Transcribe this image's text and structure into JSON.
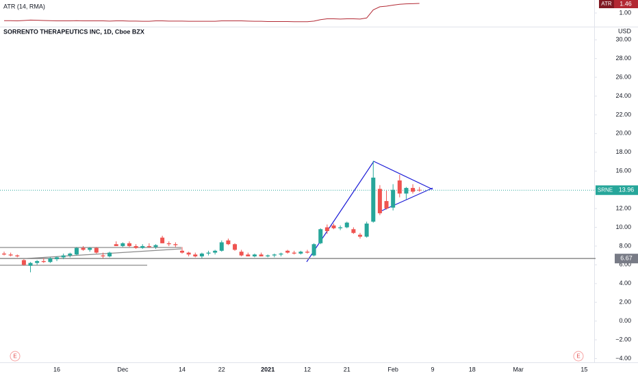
{
  "chart_data": {
    "type": "candlestick",
    "title": "SORRENTO THERAPEUTICS INC, 1D, Cboe BZX",
    "currency": "USD",
    "symbol": "SRNE",
    "last_price": 13.96,
    "price_line": 6.67,
    "up_color": "#26a69a",
    "down_color": "#ef5350",
    "categories": [
      null,
      null,
      null,
      null,
      null,
      null,
      null,
      null,
      "16",
      null,
      null,
      null,
      null,
      null,
      null,
      null,
      null,
      null,
      "Dec",
      null,
      null,
      null,
      null,
      null,
      null,
      null,
      null,
      "14",
      null,
      null,
      null,
      null,
      null,
      "22",
      null,
      null,
      null,
      null,
      null,
      null,
      "2021",
      null,
      null,
      null,
      null,
      null,
      "12",
      null,
      null,
      null,
      null,
      null,
      "21",
      null,
      null,
      null,
      null,
      null,
      null,
      "Feb",
      null,
      null,
      null,
      null,
      null,
      "9",
      null,
      null,
      null,
      null,
      null,
      "18",
      null,
      null,
      null,
      null,
      null,
      null,
      "Mar",
      null,
      null,
      null,
      null,
      null,
      null,
      null,
      null,
      null,
      "15",
      null
    ],
    "open": [
      7.2,
      7.1,
      7.0,
      6.5,
      5.9,
      6.2,
      6.4,
      6.3,
      6.6,
      6.8,
      7.0,
      7.1,
      7.8,
      7.6,
      7.8,
      7.0,
      6.9,
      8.2,
      8.0,
      8.3,
      8.0,
      7.8,
      8.0,
      7.9,
      8.9,
      8.3,
      8.2,
      7.5,
      7.3,
      7.1,
      6.9,
      7.2,
      7.3,
      7.5,
      8.6,
      8.2,
      7.4,
      7.1,
      6.9,
      7.1,
      6.9,
      7.0,
      7.1,
      7.5,
      7.3,
      7.2,
      7.4,
      7.0,
      8.3,
      10.0,
      10.2,
      9.9,
      10.0,
      9.8,
      9.2,
      9.0,
      10.6,
      14.1,
      12.8,
      12.1,
      15.0,
      13.6,
      14.2,
      14.0,
      null,
      null,
      null,
      null,
      null,
      null,
      null,
      null,
      null,
      null,
      null,
      null,
      null,
      null,
      null,
      null,
      null,
      null,
      null,
      null,
      null,
      null,
      null,
      null,
      null,
      null
    ],
    "high": [
      7.4,
      7.3,
      7.1,
      6.6,
      6.3,
      6.5,
      6.7,
      6.8,
      6.9,
      7.2,
      7.3,
      7.9,
      8.0,
      7.9,
      7.9,
      7.3,
      7.4,
      8.5,
      8.4,
      8.5,
      8.2,
      8.2,
      8.3,
      8.2,
      9.1,
      8.5,
      8.4,
      7.9,
      7.4,
      7.3,
      7.3,
      7.5,
      7.6,
      8.6,
      8.8,
      8.3,
      7.6,
      7.3,
      7.2,
      7.3,
      7.1,
      7.2,
      7.3,
      7.6,
      7.5,
      7.5,
      7.6,
      8.3,
      9.9,
      10.3,
      10.4,
      10.2,
      10.6,
      10.0,
      9.4,
      10.6,
      17.1,
      14.5,
      13.9,
      14.6,
      15.6,
      14.3,
      14.6,
      14.3,
      null,
      null,
      null,
      null,
      null,
      null,
      null,
      null,
      null,
      null,
      null,
      null,
      null,
      null,
      null,
      null,
      null,
      null,
      null,
      null,
      null,
      null,
      null,
      null,
      null,
      null
    ],
    "low": [
      7.0,
      6.9,
      6.8,
      5.9,
      5.2,
      6.0,
      6.2,
      6.2,
      6.4,
      6.6,
      6.8,
      7.0,
      7.5,
      7.4,
      7.2,
      6.7,
      6.8,
      8.0,
      7.9,
      7.9,
      7.7,
      7.7,
      7.8,
      7.7,
      8.3,
      8.0,
      7.9,
      7.2,
      6.9,
      6.8,
      6.7,
      7.0,
      7.1,
      7.4,
      8.1,
      7.5,
      6.9,
      6.9,
      6.8,
      6.9,
      6.8,
      6.8,
      6.9,
      7.2,
      7.1,
      7.1,
      7.2,
      6.9,
      8.2,
      9.3,
      9.8,
      9.7,
      9.9,
      9.3,
      8.8,
      8.9,
      10.5,
      11.3,
      11.9,
      11.8,
      13.2,
      13.0,
      13.6,
      13.8,
      null,
      null,
      null,
      null,
      null,
      null,
      null,
      null,
      null,
      null,
      null,
      null,
      null,
      null,
      null,
      null,
      null,
      null,
      null,
      null,
      null,
      null,
      null,
      null,
      null,
      null
    ],
    "close": [
      7.1,
      7.0,
      6.9,
      6.0,
      6.2,
      6.4,
      6.3,
      6.7,
      6.8,
      7.0,
      7.2,
      7.8,
      7.6,
      7.8,
      7.3,
      6.9,
      7.3,
      8.0,
      8.3,
      8.0,
      7.8,
      8.0,
      7.9,
      8.1,
      8.3,
      8.2,
      8.1,
      7.3,
      7.1,
      6.9,
      7.2,
      7.3,
      7.5,
      8.4,
      8.2,
      7.6,
      7.0,
      6.9,
      7.1,
      6.9,
      7.0,
      7.1,
      7.2,
      7.3,
      7.2,
      7.4,
      7.3,
      8.2,
      9.8,
      9.6,
      9.9,
      10.0,
      10.5,
      9.4,
      9.0,
      10.4,
      15.3,
      11.5,
      12.0,
      14.0,
      13.6,
      14.2,
      13.8,
      13.96,
      null,
      null,
      null,
      null,
      null,
      null,
      null,
      null,
      null,
      null,
      null,
      null,
      null,
      null,
      null,
      null,
      null,
      null,
      null,
      null,
      null,
      null,
      null,
      null,
      null,
      null
    ],
    "ylim": [
      -4.4,
      30.6
    ],
    "yticks": [
      {
        "value": -4,
        "label": "−4.00"
      },
      {
        "value": -2,
        "label": "−2.00"
      },
      {
        "value": 0,
        "label": "0.00"
      },
      {
        "value": 2,
        "label": "2.00"
      },
      {
        "value": 4,
        "label": "4.00"
      },
      {
        "value": 6,
        "label": "6.00"
      },
      {
        "value": 8,
        "label": "8.00"
      },
      {
        "value": 10,
        "label": "10.00"
      },
      {
        "value": 12,
        "label": "12.00"
      },
      {
        "value": 14,
        "label": "14.00"
      },
      {
        "value": 16,
        "label": "16.00"
      },
      {
        "value": 18,
        "label": "18.00"
      },
      {
        "value": 20,
        "label": "20.00"
      },
      {
        "value": 22,
        "label": "22.00"
      },
      {
        "value": 24,
        "label": "24.00"
      },
      {
        "value": 26,
        "label": "26.00"
      },
      {
        "value": 28,
        "label": "28.00"
      },
      {
        "value": 30,
        "label": "30.00"
      }
    ],
    "grid": false,
    "indicator": {
      "name": "ATR (14, RMA)",
      "short_name": "ATR",
      "color": "#b22833",
      "last_value": 1.46,
      "ylim": [
        0.375,
        1.625
      ],
      "yticks": [
        {
          "value": 1,
          "label": "1.00"
        }
      ],
      "values": [
        0.63,
        0.63,
        0.62,
        0.64,
        0.66,
        0.65,
        0.64,
        0.63,
        0.62,
        0.62,
        0.62,
        0.63,
        0.62,
        0.62,
        0.62,
        0.62,
        0.61,
        0.62,
        0.62,
        0.61,
        0.61,
        0.6,
        0.6,
        0.62,
        0.62,
        0.61,
        0.61,
        0.61,
        0.6,
        0.6,
        0.6,
        0.6,
        0.6,
        0.62,
        0.62,
        0.62,
        0.62,
        0.61,
        0.6,
        0.6,
        0.59,
        0.59,
        0.59,
        0.59,
        0.58,
        0.58,
        0.58,
        0.61,
        0.68,
        0.72,
        0.72,
        0.71,
        0.72,
        0.72,
        0.71,
        0.76,
        1.15,
        1.3,
        1.33,
        1.38,
        1.42,
        1.44,
        1.45,
        1.46,
        null,
        null,
        null,
        null,
        null,
        null,
        null,
        null,
        null,
        null,
        null,
        null,
        null,
        null,
        null,
        null,
        null,
        null,
        null,
        null,
        null,
        null,
        null,
        null,
        null,
        null
      ]
    },
    "markers": [
      "E",
      "E"
    ]
  }
}
